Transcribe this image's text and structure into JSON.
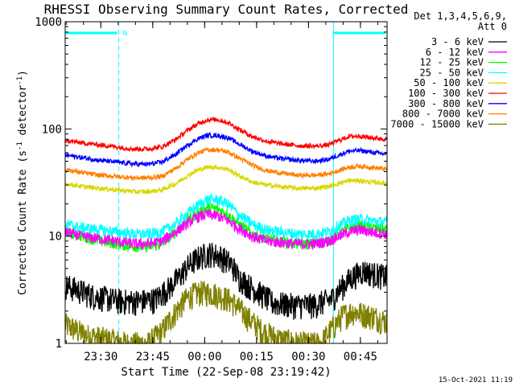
{
  "chart_data": {
    "type": "line",
    "title": "RHESSI Observing Summary Count Rates, Corrected",
    "xlabel": "Start Time (22-Sep-08 23:19:42)",
    "ylabel_main": "Corrected Count Rate (s",
    "ylabel_sup1": "-1",
    "ylabel_mid": " detector",
    "ylabel_sup2": "-1",
    "ylabel_end": ")",
    "x_unit": "minutes after 23:19:42",
    "xlim": [
      0,
      93
    ],
    "ylim": [
      1,
      1000
    ],
    "yscale": "log",
    "x_ticks": [
      {
        "label": "23:30",
        "x": 10.3
      },
      {
        "label": "23:45",
        "x": 25.3
      },
      {
        "label": "00:00",
        "x": 40.3
      },
      {
        "label": "00:15",
        "x": 55.3
      },
      {
        "label": "00:30",
        "x": 70.3
      },
      {
        "label": "00:45",
        "x": 85.3
      }
    ],
    "y_ticks": [
      {
        "label": "1",
        "y": 1
      },
      {
        "label": "10",
        "y": 10
      },
      {
        "label": "100",
        "y": 100
      },
      {
        "label": "1000",
        "y": 1000
      }
    ],
    "legend_header": [
      "Det 1,3,4,5,6,9,",
      "Att 0"
    ],
    "legend_position": "right",
    "timestamp": "15-Oct-2021 11:19",
    "night_marker": "N",
    "night_intervals": [
      [
        0,
        15.5
      ],
      [
        77.5,
        93
      ]
    ],
    "series": [
      {
        "name": "3 - 6 keV",
        "color": "#000000",
        "x": [
          0,
          8,
          16,
          22,
          26,
          30,
          33,
          36,
          39,
          42,
          45,
          48,
          50,
          53,
          56,
          60,
          66,
          72,
          77,
          80,
          83,
          86,
          89,
          93
        ],
        "y": [
          3.5,
          2.8,
          2.5,
          2.5,
          2.6,
          3.3,
          4.2,
          5.5,
          6.5,
          7.0,
          6.5,
          5.5,
          4.2,
          3.5,
          3.0,
          2.4,
          2.3,
          2.3,
          2.6,
          3.4,
          4.2,
          4.8,
          4.5,
          4.2
        ]
      },
      {
        "name": "6 - 12 keV",
        "color": "#ff00ff",
        "x": [
          0,
          5,
          10,
          15,
          20,
          24,
          28,
          32,
          35,
          38,
          41,
          44,
          47,
          50,
          54,
          58,
          62,
          67,
          72,
          76,
          79,
          82,
          85,
          88,
          93
        ],
        "y": [
          11,
          10,
          9.5,
          9,
          8.5,
          8.5,
          9,
          11,
          13,
          15,
          16,
          15.5,
          14,
          12,
          10,
          9,
          8.8,
          8.5,
          8.5,
          9,
          10,
          11,
          11.5,
          11,
          10.5
        ]
      },
      {
        "name": "12 - 25 keV",
        "color": "#00ff00",
        "x": [
          0,
          5,
          10,
          15,
          20,
          24,
          28,
          32,
          35,
          38,
          41,
          44,
          47,
          50,
          54,
          58,
          62,
          67,
          72,
          76,
          79,
          82,
          85,
          88,
          93
        ],
        "y": [
          11,
          10,
          9,
          8.5,
          8,
          8,
          8.5,
          11,
          14,
          16,
          18.5,
          18,
          16,
          13,
          10.5,
          9.5,
          9,
          8.5,
          8.5,
          9,
          10.5,
          12,
          12.5,
          12,
          11.5
        ]
      },
      {
        "name": "25 - 50 keV",
        "color": "#00ffff",
        "x": [
          0,
          5,
          10,
          15,
          20,
          24,
          28,
          32,
          35,
          38,
          41,
          44,
          47,
          50,
          54,
          58,
          62,
          67,
          72,
          76,
          79,
          82,
          85,
          88,
          93
        ],
        "y": [
          13,
          12,
          11.5,
          11,
          10.5,
          10.5,
          11,
          13,
          16,
          19,
          22,
          22,
          20,
          16,
          13,
          11.5,
          11,
          10.5,
          10.5,
          11,
          12.5,
          14,
          14.5,
          14,
          13.5
        ]
      },
      {
        "name": "50 - 100 keV",
        "color": "#d8d800",
        "x": [
          0,
          5,
          10,
          15,
          20,
          24,
          28,
          32,
          35,
          38,
          41,
          44,
          47,
          50,
          54,
          58,
          62,
          67,
          72,
          76,
          79,
          82,
          85,
          88,
          93
        ],
        "y": [
          31,
          29,
          28,
          27,
          26,
          26,
          27,
          31,
          36,
          41,
          44,
          44,
          42,
          37,
          32,
          30,
          29,
          28,
          28,
          29,
          31,
          33,
          33,
          32,
          31
        ]
      },
      {
        "name": "100 - 300 keV",
        "color": "#ff0000",
        "x": [
          0,
          5,
          10,
          15,
          20,
          24,
          28,
          32,
          35,
          38,
          41,
          44,
          47,
          50,
          54,
          58,
          62,
          67,
          72,
          76,
          79,
          82,
          85,
          88,
          93
        ],
        "y": [
          78,
          74,
          71,
          68,
          65,
          65,
          68,
          80,
          95,
          110,
          122,
          122,
          115,
          100,
          85,
          77,
          73,
          70,
          69,
          71,
          78,
          85,
          86,
          83,
          80
        ]
      },
      {
        "name": "300 - 800 keV",
        "color": "#0000ff",
        "x": [
          0,
          5,
          10,
          15,
          20,
          24,
          28,
          32,
          35,
          38,
          41,
          44,
          47,
          50,
          54,
          58,
          62,
          67,
          72,
          76,
          79,
          82,
          85,
          88,
          93
        ],
        "y": [
          57,
          54,
          51,
          49,
          47,
          47,
          49,
          58,
          69,
          80,
          87,
          87,
          83,
          73,
          62,
          56,
          53,
          51,
          50,
          52,
          57,
          62,
          63,
          61,
          58
        ]
      },
      {
        "name": "800 - 7000 keV",
        "color": "#ff8000",
        "x": [
          0,
          5,
          10,
          15,
          20,
          24,
          28,
          32,
          35,
          38,
          41,
          44,
          47,
          50,
          54,
          58,
          62,
          67,
          72,
          76,
          79,
          82,
          85,
          88,
          93
        ],
        "y": [
          42,
          39,
          37,
          36,
          35,
          35,
          36,
          43,
          51,
          59,
          64,
          64,
          61,
          54,
          46,
          41,
          39,
          37,
          37,
          38,
          41,
          44,
          45,
          44,
          42
        ]
      },
      {
        "name": "7000 - 15000 keV",
        "color": "#808000",
        "x": [
          0,
          6,
          12,
          18,
          24,
          28,
          31,
          34,
          36,
          39,
          42,
          45,
          48,
          51,
          54,
          57,
          62,
          68,
          74,
          78,
          80,
          83,
          86,
          89,
          93
        ],
        "y": [
          1.5,
          1.2,
          1.1,
          1.0,
          1.0,
          1.3,
          1.8,
          2.4,
          2.8,
          3.0,
          3.0,
          2.8,
          2.5,
          2.0,
          1.6,
          1.3,
          1.1,
          1.0,
          1.0,
          1.5,
          1.8,
          2.0,
          1.9,
          1.8,
          1.6
        ]
      }
    ]
  }
}
